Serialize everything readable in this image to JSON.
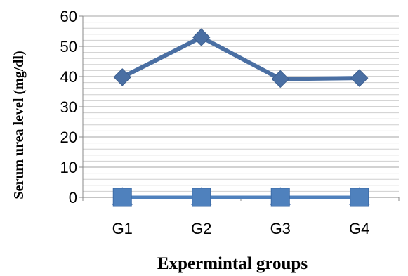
{
  "chart_data": {
    "type": "line",
    "title": "",
    "xlabel": "Expermintal groups",
    "ylabel": "Serum urea level (mg/dl)",
    "categories": [
      "G1",
      "G2",
      "G3",
      "G4"
    ],
    "ylim": [
      0,
      60
    ],
    "y_ticks": [
      "0",
      "10",
      "20",
      "30",
      "40",
      "50",
      "60"
    ],
    "grid": true,
    "legend": "none",
    "series": [
      {
        "values": [
          39.8,
          53,
          39.2,
          39.5
        ],
        "color": "#4a6fa3",
        "marker": "diamond"
      },
      {
        "values": [
          0,
          0,
          0,
          0
        ],
        "color": "#4f81bd",
        "marker": "square"
      },
      {
        "values": [
          0,
          0,
          0,
          0
        ],
        "color": "#a9bde0",
        "marker": "triangle"
      }
    ]
  }
}
